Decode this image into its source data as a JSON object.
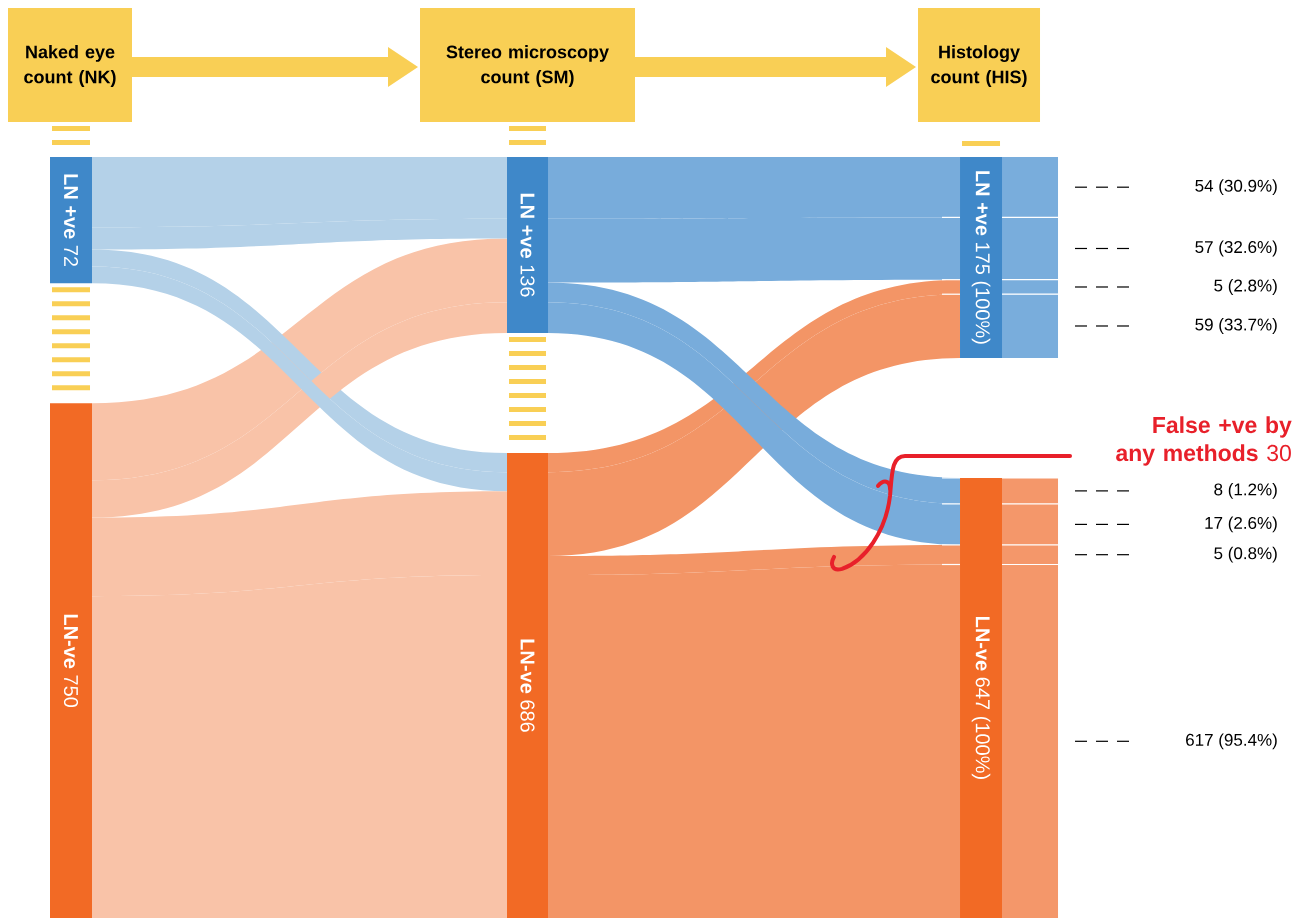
{
  "chart_data": {
    "type": "other",
    "categories": [
      "Naked eye count (NK)",
      "Stereo microscopy count (SM)",
      "Histology count (HIS)"
    ],
    "series": [
      {
        "type": "bar",
        "name": "LN +ve",
        "color": "#3f88c9",
        "values": [
          72,
          136,
          175
        ],
        "value_labels": [
          "72",
          "136",
          "175 (100%)"
        ]
      },
      {
        "type": "bar",
        "name": "LN-ve",
        "color": "#f26a25",
        "values": [
          750,
          686,
          647
        ],
        "value_labels": [
          "750",
          "686",
          "647 (100%)"
        ]
      },
      {
        "type": "area",
        "values": [
          null,
          null,
          54
        ],
        "colors": [
          "#b4d1e8",
          "#78acdb",
          "#79addc"
        ],
        "value_labels": [
          null,
          null,
          "54 (30.9%)"
        ]
      },
      {
        "type": "area",
        "values": [
          null,
          null,
          57
        ],
        "colors": [
          "#f9c3a8",
          "#78acdb",
          "#79addc"
        ],
        "value_labels": [
          null,
          null,
          "57 (32.6%)"
        ]
      },
      {
        "type": "area",
        "values": [
          null,
          null,
          5
        ],
        "colors": [
          "#b4d1e8",
          "#f39566",
          "#79addc"
        ],
        "value_labels": [
          null,
          null,
          "5 (2.8%)"
        ]
      },
      {
        "type": "area",
        "values": [
          null,
          null,
          59
        ],
        "colors": [
          "#f9c3a8",
          "#f39566",
          "#79addc"
        ],
        "value_labels": [
          null,
          null,
          "59 (33.7%)"
        ]
      },
      {
        "type": "area",
        "values": [
          null,
          null,
          8
        ],
        "colors": [
          "#b4d1e8",
          "#78acdb",
          "#f4976a"
        ],
        "value_labels": [
          null,
          null,
          "8 (1.2%)"
        ]
      },
      {
        "type": "area",
        "values": [
          null,
          null,
          17
        ],
        "colors": [
          "#f9c3a8",
          "#78acdb",
          "#f4976a"
        ],
        "value_labels": [
          null,
          null,
          "17 (2.6%)"
        ]
      },
      {
        "type": "area",
        "values": [
          null,
          null,
          5
        ],
        "colors": [
          "#b4d1e8",
          "#f39566",
          "#f4976a"
        ],
        "value_labels": [
          null,
          null,
          "5 (0.8%)"
        ]
      },
      {
        "type": "area",
        "values": [
          null,
          null,
          617
        ],
        "colors": [
          "#f9c3a8",
          "#f39566",
          "#f4976a"
        ],
        "value_labels": [
          null,
          null,
          "617 (95.4%)"
        ]
      }
    ],
    "annotations": [
      "**False +ve by any methods** 30"
    ]
  }
}
